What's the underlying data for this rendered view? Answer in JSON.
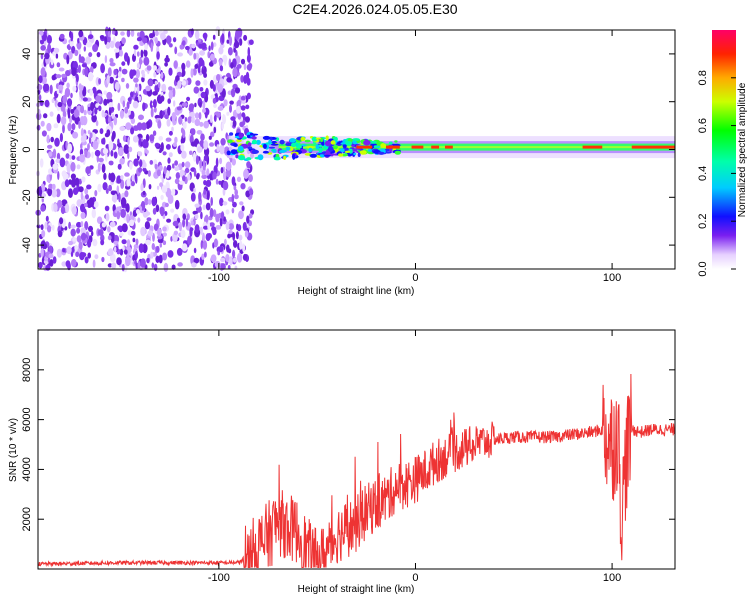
{
  "title": "C2E4.2026.024.05.05.E30",
  "colors": {
    "snr_line": "#ee3333",
    "noise": "#6a1fd6"
  },
  "chart_data": [
    {
      "type": "heatmap",
      "xlabel": "Height of straight line (km)",
      "ylabel": "Frequency (Hz)",
      "xlim": [
        -192,
        132
      ],
      "ylim": [
        -50,
        50
      ],
      "x_ticks": [
        {
          "v": -100,
          "label": "-100"
        },
        {
          "v": 0,
          "label": "0"
        },
        {
          "v": 100,
          "label": "100"
        }
      ],
      "y_ticks": [
        {
          "v": -40,
          "label": "-40"
        },
        {
          "v": -20,
          "label": "-20"
        },
        {
          "v": 0,
          "label": "0"
        },
        {
          "v": 20,
          "label": "20"
        },
        {
          "v": 40,
          "label": "40"
        }
      ],
      "colorbar": {
        "label": "Normalized spectral amplitude",
        "range": [
          0,
          1
        ],
        "ticks": [
          {
            "v": 0.0,
            "label": "0.0"
          },
          {
            "v": 0.2,
            "label": "0.2"
          },
          {
            "v": 0.4,
            "label": "0.4"
          },
          {
            "v": 0.6,
            "label": "0.6"
          },
          {
            "v": 0.8,
            "label": "0.8"
          }
        ]
      },
      "signal_band": {
        "frequency_hz": 1,
        "start_km": -95,
        "end_km": 132
      },
      "noise_region_km": [
        -192,
        -85
      ]
    },
    {
      "type": "line",
      "xlabel": "Height of straight line (km)",
      "ylabel": "SNR (10 * v/v)",
      "xlim": [
        -192,
        132
      ],
      "ylim": [
        0,
        9600
      ],
      "x_ticks": [
        {
          "v": -100,
          "label": "-100"
        },
        {
          "v": 0,
          "label": "0"
        },
        {
          "v": 100,
          "label": "100"
        }
      ],
      "y_ticks": [
        {
          "v": 2000,
          "label": "2000"
        },
        {
          "v": 4000,
          "label": "4000"
        },
        {
          "v": 6000,
          "label": "6000"
        },
        {
          "v": 8000,
          "label": "8000"
        }
      ],
      "series": [
        {
          "name": "SNR",
          "x": [
            -192,
            -150,
            -120,
            -100,
            -90,
            -85,
            -80,
            -75,
            -70,
            -65,
            -60,
            -55,
            -50,
            -45,
            -40,
            -35,
            -30,
            -25,
            -20,
            -15,
            -10,
            -5,
            0,
            5,
            10,
            15,
            20,
            30,
            40,
            50,
            60,
            70,
            80,
            90,
            95,
            100,
            103,
            105,
            107,
            110,
            115,
            120,
            132
          ],
          "y": [
            200,
            250,
            250,
            250,
            260,
            350,
            900,
            1300,
            1900,
            1700,
            1500,
            800,
            300,
            700,
            1400,
            1600,
            1800,
            2300,
            2600,
            2800,
            3300,
            3400,
            3600,
            3900,
            4300,
            4500,
            4700,
            5000,
            5200,
            5300,
            5300,
            5300,
            5400,
            5500,
            5600,
            5000,
            5500,
            2000,
            4500,
            5600,
            5500,
            5600,
            5600
          ]
        }
      ]
    }
  ]
}
